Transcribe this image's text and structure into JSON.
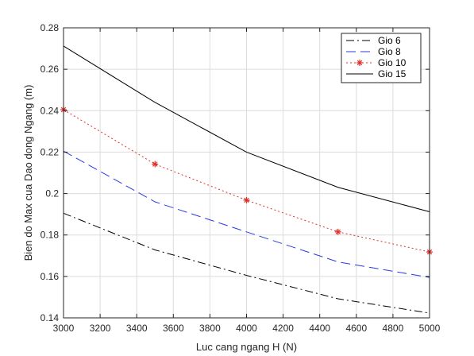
{
  "chart_data": {
    "type": "line",
    "xlabel": "Luc cang ngang H (N)",
    "ylabel": "Bien do Max cua Dao dong Ngang  (m)",
    "xlim": [
      3000,
      5000
    ],
    "ylim": [
      0.14,
      0.28
    ],
    "xticks": [
      3000,
      3200,
      3400,
      3600,
      3800,
      4000,
      4200,
      4400,
      4600,
      4800,
      5000
    ],
    "yticks": [
      0.14,
      0.16,
      0.18,
      0.2,
      0.22,
      0.24,
      0.26,
      0.28
    ],
    "grid": true,
    "legend_position": "top-right",
    "series": [
      {
        "name": "Gio 6",
        "style": "dash-dot",
        "color": "#000000",
        "marker": "none",
        "x": [
          3000,
          3500,
          4000,
          4500,
          5000
        ],
        "values": [
          0.1905,
          0.1728,
          0.1605,
          0.1492,
          0.1423
        ]
      },
      {
        "name": "Gio 8",
        "style": "dashed",
        "color": "#2a3adf",
        "marker": "none",
        "x": [
          3000,
          3500,
          4000,
          4500,
          5000
        ],
        "values": [
          0.2205,
          0.196,
          0.1815,
          0.167,
          0.1595
        ]
      },
      {
        "name": "Gio 10",
        "style": "dotted",
        "color": "#e0302a",
        "marker": "asterisk",
        "x": [
          3000,
          3500,
          4000,
          4500,
          5000
        ],
        "values": [
          0.2405,
          0.2142,
          0.1968,
          0.1815,
          0.1718
        ]
      },
      {
        "name": "Gio 15",
        "style": "solid",
        "color": "#000000",
        "marker": "none",
        "x": [
          3000,
          3500,
          4000,
          4500,
          5000
        ],
        "values": [
          0.2712,
          0.244,
          0.22,
          0.203,
          0.1912
        ]
      }
    ]
  }
}
